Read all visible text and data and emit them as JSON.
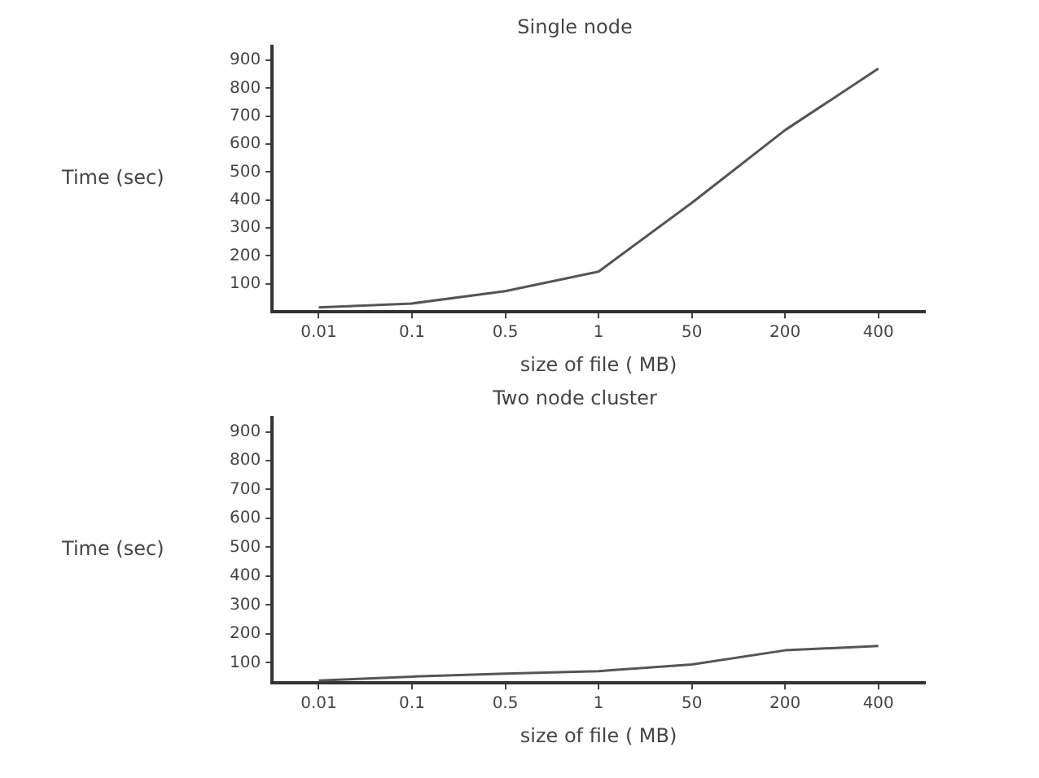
{
  "chart_data": [
    {
      "type": "line",
      "title": "Single node",
      "xlabel": "size of file ( MB)",
      "ylabel": "Time (sec)",
      "categories": [
        "0.01",
        "0.1",
        "0.5",
        "1",
        "50",
        "200",
        "400"
      ],
      "series": [
        {
          "color": "#555555",
          "values": [
            16,
            30,
            74,
            144,
            390,
            650,
            870
          ]
        }
      ],
      "ylim": [
        0,
        950
      ],
      "yticks": [
        100,
        200,
        300,
        400,
        500,
        600,
        700,
        800,
        900
      ],
      "grid": false,
      "legend": false,
      "marker": "none",
      "line_style": "solid"
    },
    {
      "type": "line",
      "title": "Two node cluster",
      "xlabel": "size of file ( MB)",
      "ylabel": "Time (sec)",
      "categories": [
        "0.01",
        "0.1",
        "0.5",
        "1",
        "50",
        "200",
        "400"
      ],
      "series": [
        {
          "color": "#555555",
          "values": [
            38,
            52,
            62,
            71,
            94,
            143,
            158
          ]
        }
      ],
      "ylim": [
        30,
        950
      ],
      "yticks": [
        100,
        200,
        300,
        400,
        500,
        600,
        700,
        800,
        900
      ],
      "grid": false,
      "legend": false,
      "marker": "none",
      "line_style": "solid"
    }
  ]
}
